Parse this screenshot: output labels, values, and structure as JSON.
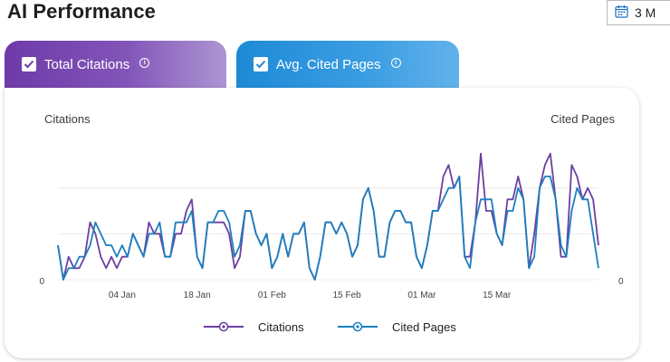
{
  "header": {
    "title": "AI Performance",
    "date_range_label": "3 M"
  },
  "tabs": [
    {
      "label": "Total Citations",
      "checked": true,
      "color": "#6e3aa8"
    },
    {
      "label": "Avg. Cited Pages",
      "checked": true,
      "color": "#1d8ad6"
    }
  ],
  "chart_data": {
    "type": "line",
    "y_left_label": "Citations",
    "y_right_label": "Cited Pages",
    "y_left_ticks": [
      "0"
    ],
    "y_right_ticks": [
      "0"
    ],
    "x_tick_labels": [
      "04 Jan",
      "18 Jan",
      "01 Feb",
      "15 Feb",
      "01 Mar",
      "15 Mar"
    ],
    "x_tick_index": [
      12,
      26,
      40,
      54,
      68,
      82
    ],
    "grid": true,
    "legend_position": "bottom",
    "series": [
      {
        "name": "Citations",
        "color": "#6b3fa0",
        "values": [
          3,
          0,
          2,
          1,
          1,
          2,
          5,
          4,
          2,
          1,
          2,
          1,
          2,
          2,
          4,
          3,
          2,
          5,
          4,
          4,
          2,
          2,
          4,
          4,
          6,
          7,
          2,
          1,
          5,
          5,
          5,
          5,
          4,
          1,
          2,
          6,
          6,
          4,
          3,
          4,
          1,
          2,
          4,
          2,
          4,
          4,
          5,
          1,
          0,
          2,
          5,
          5,
          4,
          5,
          4,
          2,
          3,
          7,
          8,
          6,
          2,
          2,
          5,
          6,
          6,
          5,
          5,
          2,
          1,
          3,
          6,
          6,
          9,
          10,
          8,
          9,
          2,
          2,
          5,
          11,
          6,
          6,
          4,
          3,
          7,
          7,
          9,
          7,
          1,
          4,
          8,
          10,
          11,
          7,
          2,
          2,
          10,
          9,
          7,
          8,
          7,
          3
        ]
      },
      {
        "name": "Cited Pages",
        "color": "#1d7fbd",
        "values": [
          3,
          0,
          1,
          1,
          2,
          2,
          3,
          5,
          4,
          3,
          3,
          2,
          3,
          2,
          4,
          3,
          2,
          4,
          4,
          5,
          2,
          2,
          5,
          5,
          5,
          6,
          2,
          1,
          5,
          5,
          6,
          6,
          5,
          2,
          3,
          6,
          6,
          4,
          3,
          4,
          1,
          2,
          4,
          2,
          4,
          4,
          5,
          1,
          0,
          2,
          5,
          5,
          4,
          5,
          4,
          2,
          3,
          7,
          8,
          6,
          2,
          2,
          5,
          6,
          6,
          5,
          5,
          2,
          1,
          3,
          6,
          6,
          7,
          8,
          8,
          9,
          2,
          1,
          5,
          7,
          7,
          7,
          4,
          3,
          6,
          6,
          8,
          7,
          1,
          2,
          8,
          9,
          9,
          7,
          3,
          2,
          6,
          8,
          7,
          7,
          4,
          1
        ]
      }
    ]
  }
}
